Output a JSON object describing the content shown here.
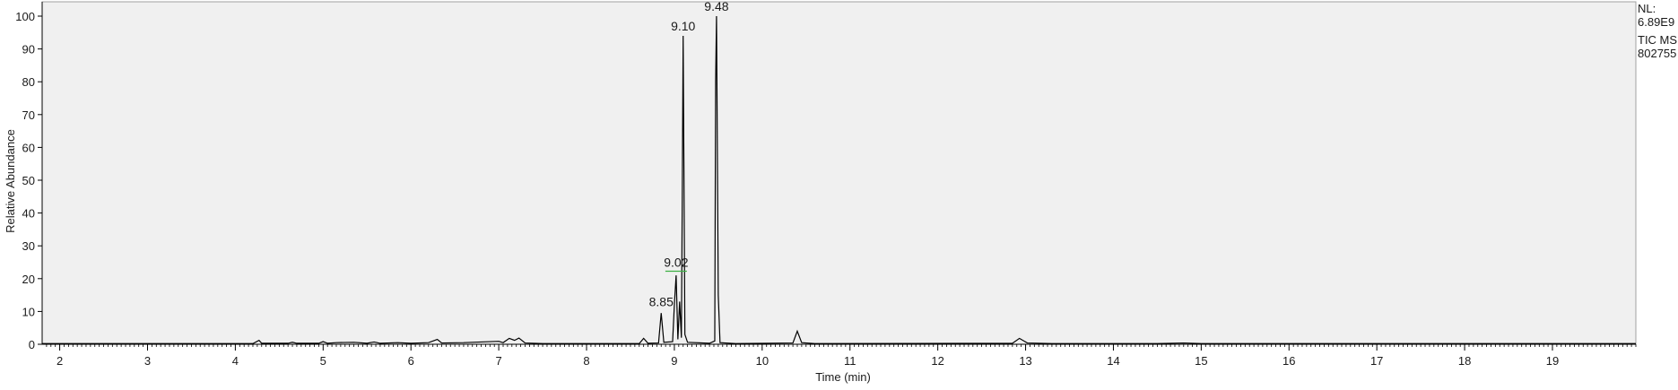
{
  "chart_data": {
    "type": "line",
    "xlabel": "Time (min)",
    "ylabel": "Relative Abundance",
    "xlim": [
      1.8,
      19.95
    ],
    "ylim": [
      0,
      100
    ],
    "x_ticks": [
      "2",
      "3",
      "4",
      "5",
      "6",
      "7",
      "8",
      "9",
      "10",
      "11",
      "12",
      "13",
      "14",
      "15",
      "16",
      "17",
      "18",
      "19"
    ],
    "y_ticks": [
      "0",
      "10",
      "20",
      "30",
      "40",
      "50",
      "60",
      "70",
      "80",
      "90",
      "100"
    ],
    "grid": false,
    "colors": {
      "background": "#f0f0f0",
      "trace": "#000000",
      "label_marker": "#3cb043"
    },
    "info": [
      "NL:",
      "6.89E9",
      "TIC  MS",
      "802755"
    ],
    "peak_labels": [
      {
        "x": 8.85,
        "y": 10,
        "label": "8.85"
      },
      {
        "x": 9.02,
        "y": 22,
        "label": "9.02"
      },
      {
        "x": 9.1,
        "y": 94,
        "label": "9.10"
      },
      {
        "x": 9.48,
        "y": 100,
        "label": "9.48"
      }
    ],
    "series": [
      {
        "values": [
          [
            1.8,
            0.2
          ],
          [
            4.2,
            0.2
          ],
          [
            4.27,
            1.2
          ],
          [
            4.3,
            0.3
          ],
          [
            4.6,
            0.3
          ],
          [
            4.65,
            0.6
          ],
          [
            4.7,
            0.3
          ],
          [
            4.95,
            0.3
          ],
          [
            5.0,
            0.8
          ],
          [
            5.05,
            0.3
          ],
          [
            5.15,
            0.5
          ],
          [
            5.35,
            0.6
          ],
          [
            5.5,
            0.3
          ],
          [
            5.58,
            0.7
          ],
          [
            5.65,
            0.3
          ],
          [
            5.85,
            0.5
          ],
          [
            6.0,
            0.3
          ],
          [
            6.2,
            0.5
          ],
          [
            6.3,
            1.5
          ],
          [
            6.35,
            0.4
          ],
          [
            6.6,
            0.5
          ],
          [
            6.9,
            0.8
          ],
          [
            7.0,
            0.9
          ],
          [
            7.05,
            0.5
          ],
          [
            7.12,
            1.8
          ],
          [
            7.18,
            1.2
          ],
          [
            7.23,
            1.9
          ],
          [
            7.3,
            0.4
          ],
          [
            7.5,
            0.2
          ],
          [
            8.6,
            0.2
          ],
          [
            8.65,
            1.8
          ],
          [
            8.7,
            0.3
          ],
          [
            8.82,
            0.4
          ],
          [
            8.85,
            9.5
          ],
          [
            8.88,
            0.6
          ],
          [
            8.98,
            0.8
          ],
          [
            9.0,
            12
          ],
          [
            9.02,
            21
          ],
          [
            9.04,
            1.5
          ],
          [
            9.06,
            13
          ],
          [
            9.08,
            2
          ],
          [
            9.09,
            45
          ],
          [
            9.1,
            94
          ],
          [
            9.12,
            3
          ],
          [
            9.15,
            0.6
          ],
          [
            9.4,
            0.3
          ],
          [
            9.46,
            1
          ],
          [
            9.47,
            80
          ],
          [
            9.48,
            100
          ],
          [
            9.5,
            15
          ],
          [
            9.52,
            0.5
          ],
          [
            9.7,
            0.2
          ],
          [
            10.35,
            0.4
          ],
          [
            10.4,
            4
          ],
          [
            10.45,
            0.5
          ],
          [
            10.6,
            0.2
          ],
          [
            12.85,
            0.3
          ],
          [
            12.93,
            1.8
          ],
          [
            13.02,
            0.4
          ],
          [
            13.3,
            0.2
          ],
          [
            14.5,
            0.2
          ],
          [
            14.8,
            0.4
          ],
          [
            15.0,
            0.2
          ],
          [
            19.95,
            0.2
          ]
        ]
      }
    ]
  }
}
